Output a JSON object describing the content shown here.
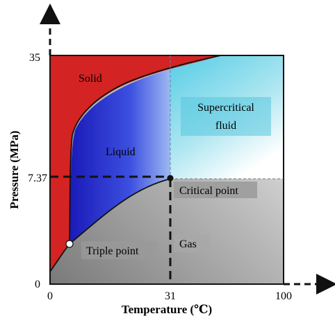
{
  "axes": {
    "x_title": "Temperature (℃)",
    "y_title": "Pressure (MPa)",
    "x_ticks": [
      "0",
      "31",
      "100"
    ],
    "y_ticks": [
      "0",
      "7.37",
      "35"
    ]
  },
  "regions": {
    "solid": "Solid",
    "liquid": "Liquid",
    "gas": "Gas",
    "supercritical_line1": "Supercritical",
    "supercritical_line2": "fluid"
  },
  "points": {
    "critical": "Critical point",
    "triple": "Triple point"
  },
  "colors": {
    "solid": "#d42323",
    "liquid_dark": "#1f22c4",
    "liquid_light": "#8fb0f0",
    "supercritical": "#5bd0e6",
    "gas_dark": "#8a8a8a",
    "gas_light": "#f0f0f0",
    "label_box": "#9a9a9a"
  }
}
